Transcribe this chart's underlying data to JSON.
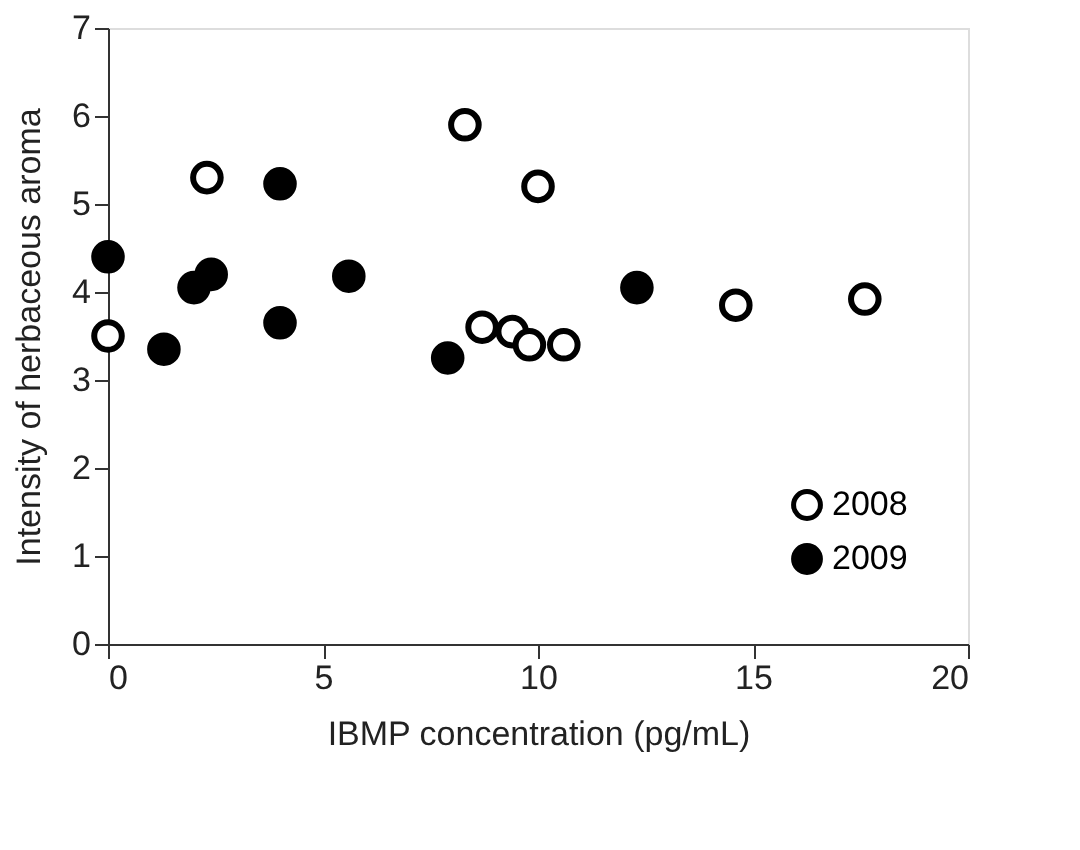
{
  "chart_data": {
    "type": "scatter",
    "xlabel": "IBMP concentration (pg/mL)",
    "ylabel": "Intensity of herbaceous aroma",
    "xlim": [
      0,
      20
    ],
    "ylim": [
      0,
      7
    ],
    "xticks": [
      0,
      5,
      10,
      15,
      20
    ],
    "yticks": [
      0,
      1,
      2,
      3,
      4,
      5,
      6,
      7
    ],
    "grid": false,
    "legend": "bottom right",
    "marker": "circle",
    "series": [
      {
        "name": "2008",
        "color": "#ffffff",
        "x": [
          0,
          2.3,
          8.3,
          10,
          8.7,
          9.4,
          9.8,
          10.6,
          14.6,
          17.6
        ],
        "values": [
          3.5,
          5.3,
          5.9,
          5.2,
          3.6,
          3.55,
          3.4,
          3.4,
          3.85,
          3.92
        ]
      },
      {
        "name": "2009",
        "color": "#000000",
        "x": [
          0,
          1.3,
          2,
          2.4,
          4,
          4,
          5.6,
          7.9,
          12.3
        ],
        "values": [
          4.4,
          3.35,
          4.05,
          4.2,
          5.23,
          3.65,
          4.18,
          3.25,
          4.05
        ]
      }
    ]
  }
}
